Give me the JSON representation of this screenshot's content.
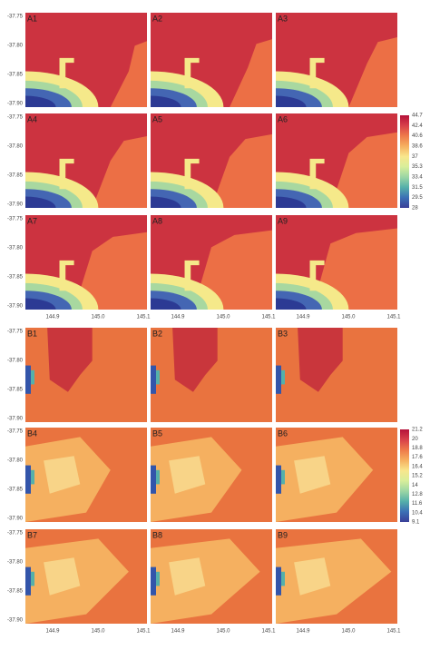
{
  "group_a": {
    "panels": [
      "A1",
      "A2",
      "A3",
      "A4",
      "A5",
      "A6",
      "A7",
      "A8",
      "A9"
    ],
    "colorbar": {
      "labels": [
        "44.7",
        "42.4",
        "40.6",
        "38.6",
        "37",
        "35.3",
        "33.4",
        "31.5",
        "29.5",
        "28"
      ],
      "colors": [
        "#b5123a",
        "#d8404a",
        "#ee7a4a",
        "#f6b060",
        "#f8e68c",
        "#d8ee9a",
        "#9cd6a4",
        "#55b0aa",
        "#3b70b5",
        "#3a3f98"
      ]
    }
  },
  "group_b": {
    "panels": [
      "B1",
      "B2",
      "B3",
      "B4",
      "B5",
      "B6",
      "B7",
      "B8",
      "B9"
    ],
    "colorbar": {
      "labels": [
        "21.2",
        "20",
        "18.8",
        "17.6",
        "16.4",
        "15.2",
        "14",
        "12.8",
        "11.6",
        "10.4",
        "9.1"
      ],
      "colors": [
        "#b5123a",
        "#d8404a",
        "#ee7a4a",
        "#f6b060",
        "#f8e68c",
        "#d8ee9a",
        "#9cd6a4",
        "#55b0aa",
        "#3b70b5",
        "#3a3f98"
      ]
    }
  },
  "y_tick_labels": [
    "-37.75",
    "-37.80",
    "-37.85",
    "-37.90"
  ],
  "x_tick_labels": [
    "144.9",
    "145.0",
    "145.1"
  ]
}
